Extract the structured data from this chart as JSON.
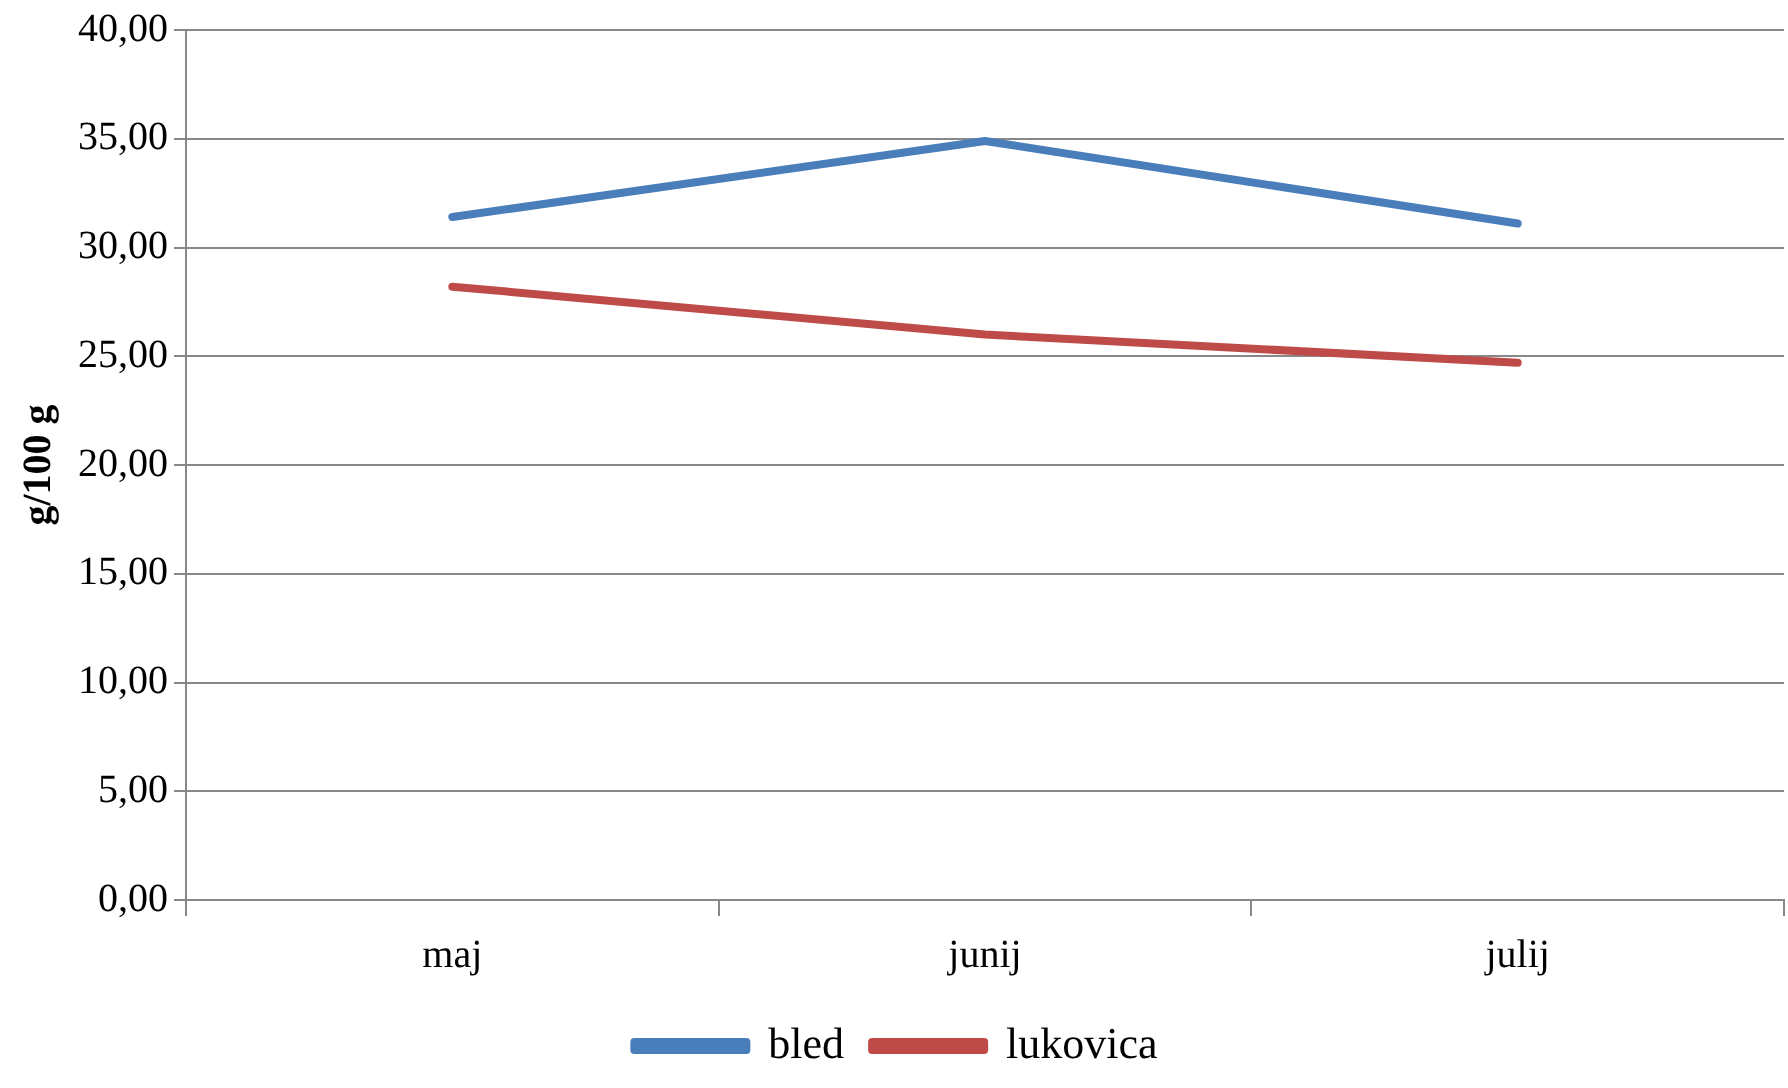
{
  "chart_data": {
    "type": "line",
    "ylabel": "g/100 g",
    "categories": [
      "maj",
      "junij",
      "julij"
    ],
    "series": [
      {
        "name": "bled",
        "color": "#4a7ebb",
        "values": [
          31.4,
          34.9,
          31.1
        ]
      },
      {
        "name": "lukovica",
        "color": "#be4b48",
        "values": [
          28.2,
          26.0,
          24.7
        ]
      }
    ],
    "ylim": [
      0,
      40
    ],
    "yticks": [
      {
        "value": 0,
        "label": "0,00"
      },
      {
        "value": 5,
        "label": "5,00"
      },
      {
        "value": 10,
        "label": "10,00"
      },
      {
        "value": 15,
        "label": "15,00"
      },
      {
        "value": 20,
        "label": "20,00"
      },
      {
        "value": 25,
        "label": "25,00"
      },
      {
        "value": 30,
        "label": "30,00"
      },
      {
        "value": 35,
        "label": "35,00"
      },
      {
        "value": 40,
        "label": "40,00"
      }
    ],
    "grid": "y",
    "legend": "bottom",
    "marker": "none",
    "line_style": "solid"
  }
}
